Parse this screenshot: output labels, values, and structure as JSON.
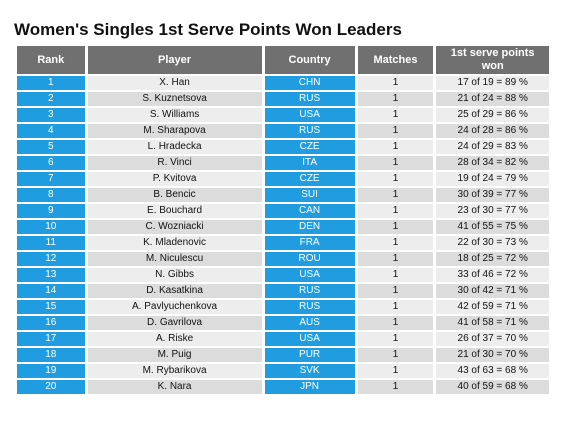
{
  "title": "Women's Singles 1st Serve Points Won Leaders",
  "colors": {
    "header": "#707070",
    "accent": "#1f9de0",
    "row_light": "#ededed",
    "row_dark": "#dcdcdc"
  },
  "columns": {
    "rank": "Rank",
    "player": "Player",
    "country": "Country",
    "matches": "Matches",
    "won": "1st serve points won"
  },
  "rows": [
    {
      "rank": "1",
      "player": "X. Han",
      "country": "CHN",
      "matches": "1",
      "won": "17 of 19 = 89 %"
    },
    {
      "rank": "2",
      "player": "S. Kuznetsova",
      "country": "RUS",
      "matches": "1",
      "won": "21 of 24 = 88 %"
    },
    {
      "rank": "3",
      "player": "S. Williams",
      "country": "USA",
      "matches": "1",
      "won": "25 of 29 = 86 %"
    },
    {
      "rank": "4",
      "player": "M. Sharapova",
      "country": "RUS",
      "matches": "1",
      "won": "24 of 28 = 86 %"
    },
    {
      "rank": "5",
      "player": "L. Hradecka",
      "country": "CZE",
      "matches": "1",
      "won": "24 of 29 = 83 %"
    },
    {
      "rank": "6",
      "player": "R. Vinci",
      "country": "ITA",
      "matches": "1",
      "won": "28 of 34 = 82 %"
    },
    {
      "rank": "7",
      "player": "P. Kvitova",
      "country": "CZE",
      "matches": "1",
      "won": "19 of 24 = 79 %"
    },
    {
      "rank": "8",
      "player": "B. Bencic",
      "country": "SUI",
      "matches": "1",
      "won": "30 of 39 = 77 %"
    },
    {
      "rank": "9",
      "player": "E. Bouchard",
      "country": "CAN",
      "matches": "1",
      "won": "23 of 30 = 77 %"
    },
    {
      "rank": "10",
      "player": "C. Wozniacki",
      "country": "DEN",
      "matches": "1",
      "won": "41 of 55 = 75 %"
    },
    {
      "rank": "11",
      "player": "K. Mladenovic",
      "country": "FRA",
      "matches": "1",
      "won": "22 of 30 = 73 %"
    },
    {
      "rank": "12",
      "player": "M. Niculescu",
      "country": "ROU",
      "matches": "1",
      "won": "18 of 25 = 72 %"
    },
    {
      "rank": "13",
      "player": "N. Gibbs",
      "country": "USA",
      "matches": "1",
      "won": "33 of 46 = 72 %"
    },
    {
      "rank": "14",
      "player": "D. Kasatkina",
      "country": "RUS",
      "matches": "1",
      "won": "30 of 42 = 71 %"
    },
    {
      "rank": "15",
      "player": "A. Pavlyuchenkova",
      "country": "RUS",
      "matches": "1",
      "won": "42 of 59 = 71 %"
    },
    {
      "rank": "16",
      "player": "D. Gavrilova",
      "country": "AUS",
      "matches": "1",
      "won": "41 of 58 = 71 %"
    },
    {
      "rank": "17",
      "player": "A. Riske",
      "country": "USA",
      "matches": "1",
      "won": "26 of 37 = 70 %"
    },
    {
      "rank": "18",
      "player": "M. Puig",
      "country": "PUR",
      "matches": "1",
      "won": "21 of 30 = 70 %"
    },
    {
      "rank": "19",
      "player": "M. Rybarikova",
      "country": "SVK",
      "matches": "1",
      "won": "43 of 63 = 68 %"
    },
    {
      "rank": "20",
      "player": "K. Nara",
      "country": "JPN",
      "matches": "1",
      "won": "40 of 59 = 68 %"
    }
  ]
}
